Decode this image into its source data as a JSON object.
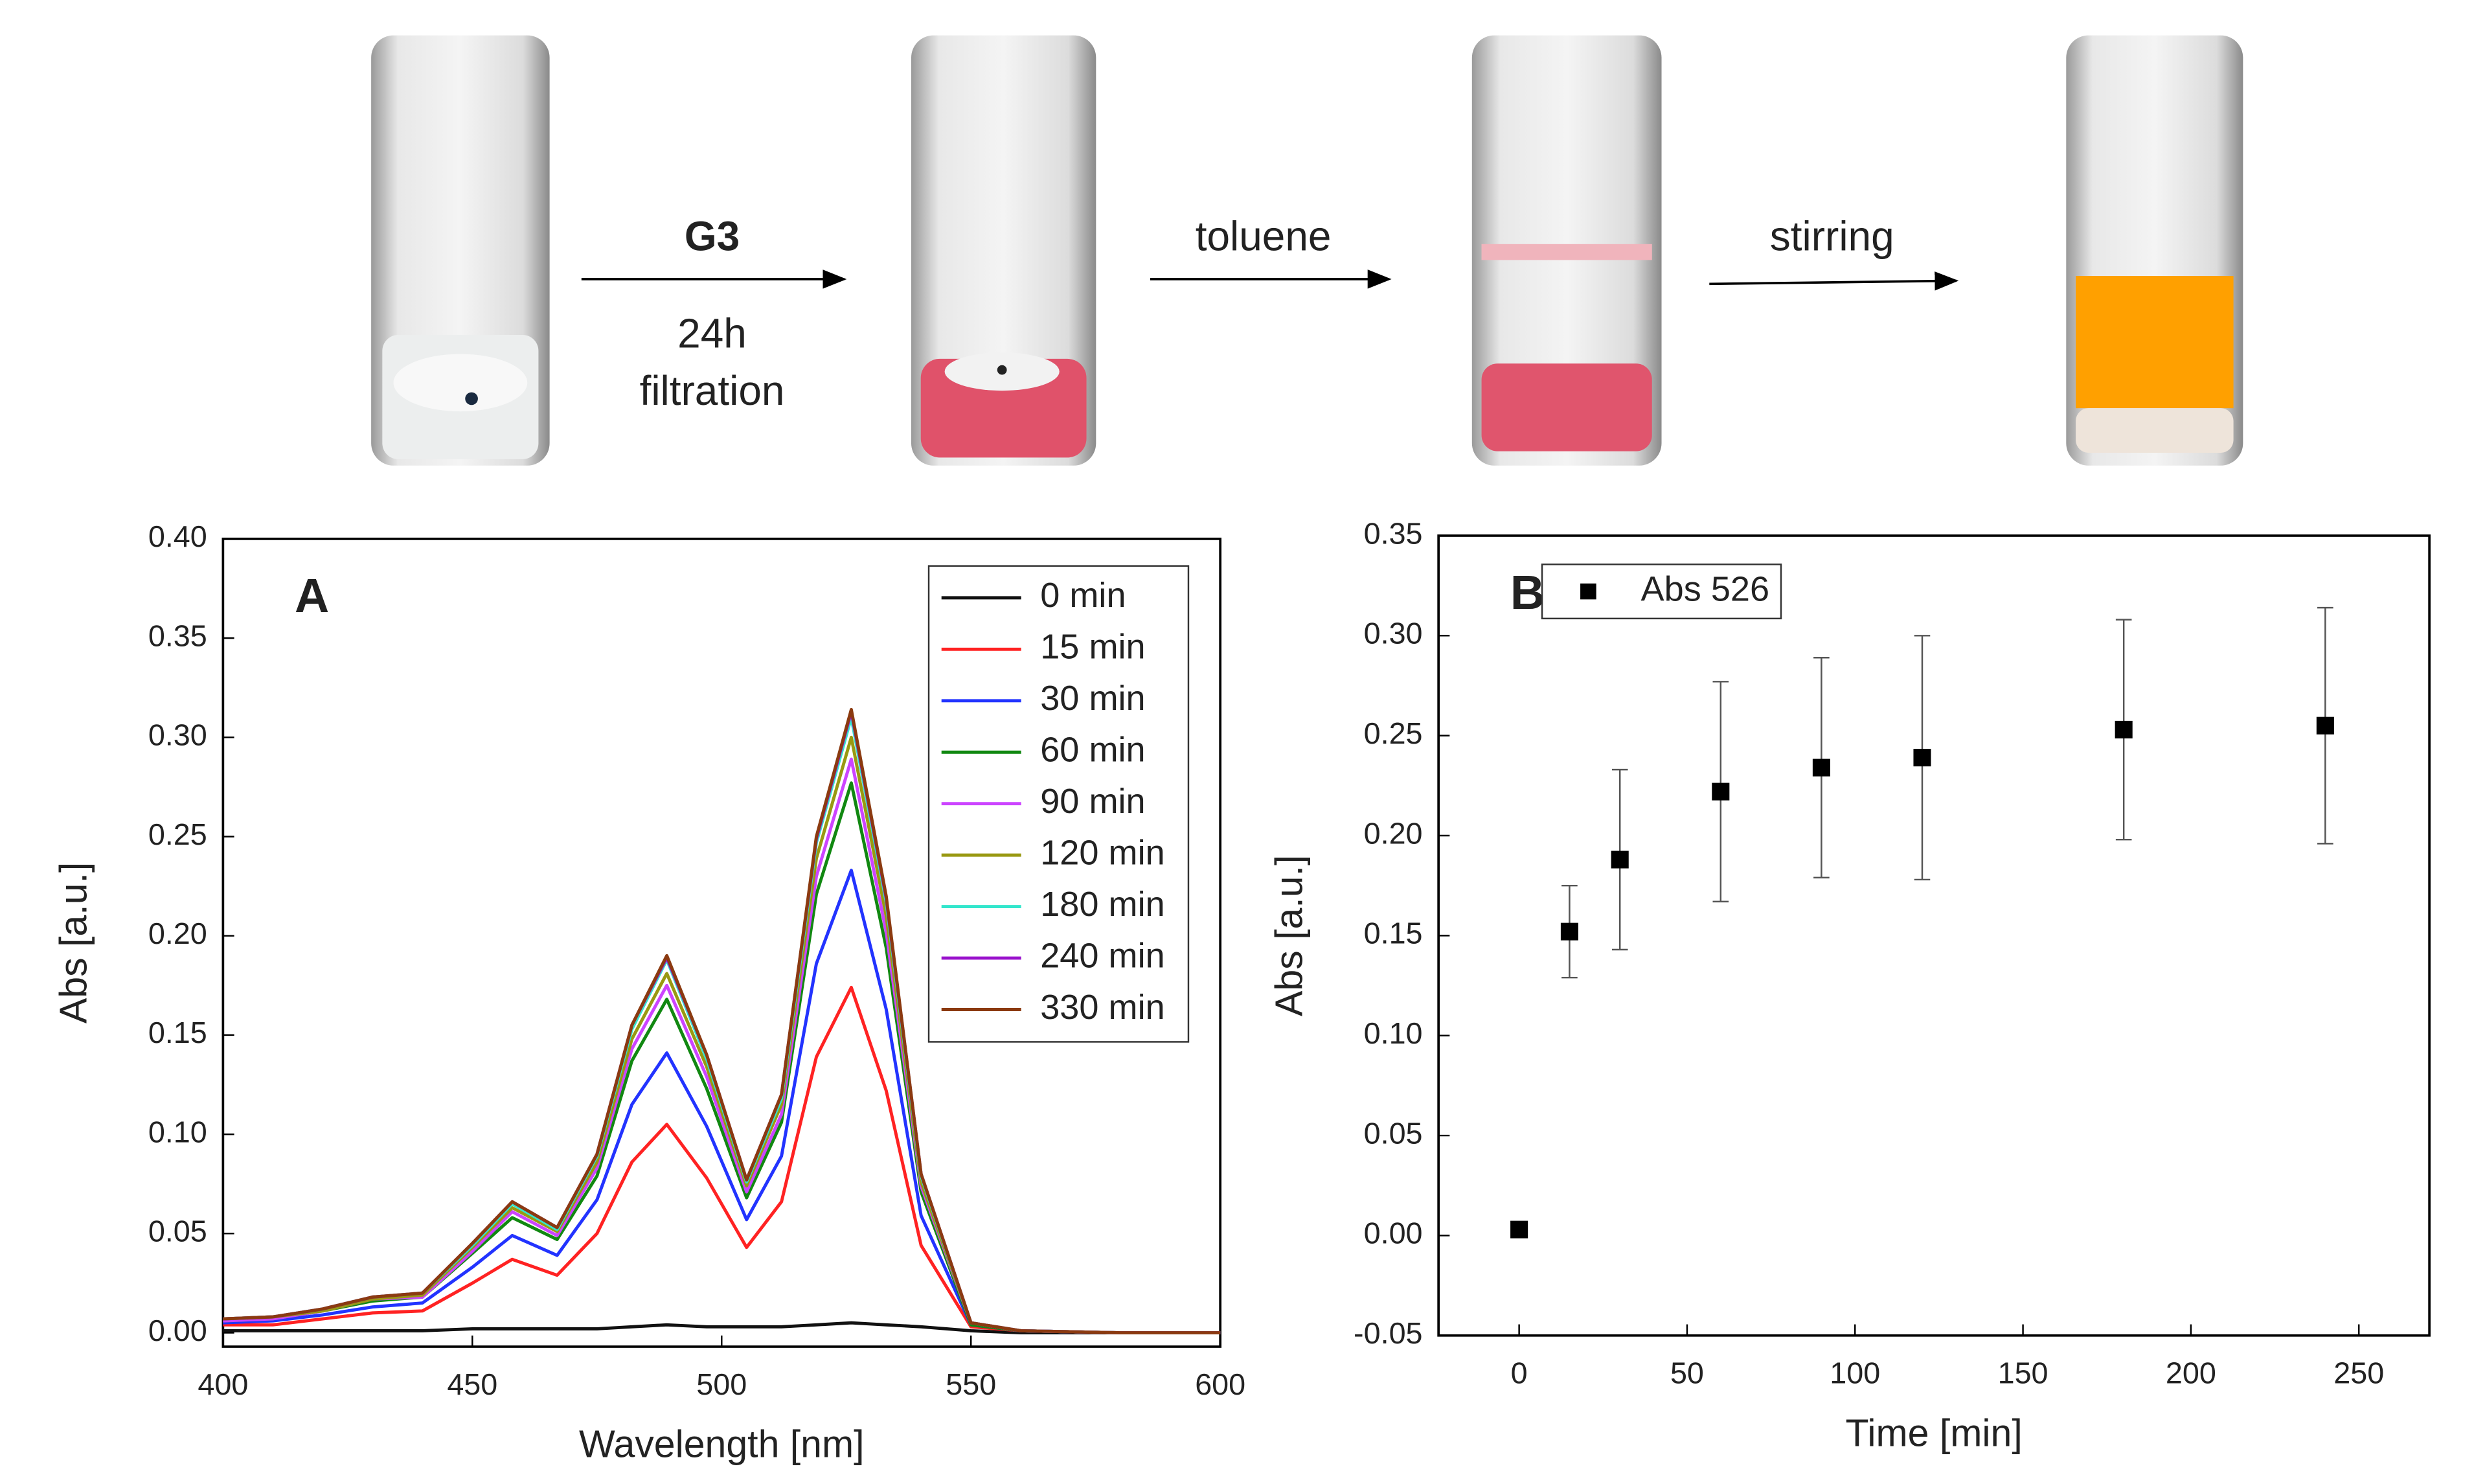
{
  "scheme": {
    "steps": [
      {
        "above": "G3",
        "below": [
          "24h",
          "filtration"
        ]
      },
      {
        "above": "toluene"
      },
      {
        "above": "stirring"
      }
    ]
  },
  "chart_data": [
    {
      "type": "line",
      "annotation": "A",
      "x_label": "Wavelength [nm]",
      "y_label": "Abs [a.u.]",
      "legend": "upper right",
      "x": [
        400,
        410,
        420,
        430,
        440,
        450,
        458,
        467,
        475,
        482,
        489,
        497,
        505,
        512,
        519,
        526,
        533,
        540,
        550,
        560,
        580,
        600
      ],
      "series": [
        {
          "name": "0 min",
          "color": "#111111",
          "values": [
            0.001,
            0.001,
            0.001,
            0.001,
            0.001,
            0.002,
            0.002,
            0.002,
            0.002,
            0.003,
            0.004,
            0.003,
            0.003,
            0.003,
            0.004,
            0.005,
            0.004,
            0.003,
            0.001,
            0,
            0,
            0
          ]
        },
        {
          "name": "15 min",
          "color": "#ff2222",
          "values": [
            0.004,
            0.004,
            0.007,
            0.01,
            0.011,
            0.025,
            0.037,
            0.029,
            0.05,
            0.086,
            0.105,
            0.078,
            0.043,
            0.066,
            0.139,
            0.174,
            0.122,
            0.044,
            0.003,
            0.001,
            0,
            0
          ]
        },
        {
          "name": "30 min",
          "color": "#2233ff",
          "values": [
            0.005,
            0.006,
            0.009,
            0.013,
            0.015,
            0.033,
            0.049,
            0.039,
            0.067,
            0.115,
            0.141,
            0.104,
            0.057,
            0.089,
            0.186,
            0.233,
            0.163,
            0.059,
            0.004,
            0.001,
            0,
            0
          ]
        },
        {
          "name": "60 min",
          "color": "#118811",
          "values": [
            0.006,
            0.007,
            0.011,
            0.016,
            0.018,
            0.04,
            0.058,
            0.047,
            0.079,
            0.137,
            0.168,
            0.123,
            0.068,
            0.106,
            0.221,
            0.277,
            0.194,
            0.071,
            0.004,
            0.001,
            0,
            0
          ]
        },
        {
          "name": "90 min",
          "color": "#cc44ff",
          "values": [
            0.006,
            0.007,
            0.011,
            0.017,
            0.018,
            0.041,
            0.061,
            0.049,
            0.083,
            0.143,
            0.175,
            0.129,
            0.071,
            0.11,
            0.23,
            0.289,
            0.202,
            0.074,
            0.005,
            0.001,
            0,
            0
          ]
        },
        {
          "name": "120 min",
          "color": "#999911",
          "values": [
            0.007,
            0.008,
            0.011,
            0.017,
            0.019,
            0.043,
            0.063,
            0.051,
            0.086,
            0.148,
            0.181,
            0.134,
            0.074,
            0.115,
            0.239,
            0.3,
            0.21,
            0.076,
            0.005,
            0.001,
            0,
            0
          ]
        },
        {
          "name": "180 min",
          "color": "#33e6cc",
          "values": [
            0.007,
            0.008,
            0.012,
            0.018,
            0.02,
            0.044,
            0.065,
            0.052,
            0.089,
            0.153,
            0.188,
            0.138,
            0.076,
            0.118,
            0.247,
            0.31,
            0.217,
            0.079,
            0.005,
            0.001,
            0,
            0
          ]
        },
        {
          "name": "240 min",
          "color": "#9911cc",
          "values": [
            0.007,
            0.008,
            0.012,
            0.018,
            0.02,
            0.045,
            0.066,
            0.053,
            0.09,
            0.155,
            0.189,
            0.14,
            0.077,
            0.12,
            0.249,
            0.313,
            0.219,
            0.08,
            0.005,
            0.001,
            0,
            0
          ]
        },
        {
          "name": "330 min",
          "color": "#8b3a10",
          "values": [
            0.007,
            0.008,
            0.012,
            0.018,
            0.02,
            0.045,
            0.066,
            0.053,
            0.09,
            0.155,
            0.19,
            0.14,
            0.077,
            0.12,
            0.25,
            0.314,
            0.22,
            0.08,
            0.005,
            0.001,
            0,
            0
          ]
        }
      ],
      "xlim": [
        400,
        600
      ],
      "xticks": [
        400,
        450,
        500,
        550,
        600
      ],
      "ylim": [
        -0.007,
        0.4
      ],
      "yticks": [
        {
          "value": 0,
          "label": "0.00"
        },
        {
          "value": 0.05,
          "label": "0.05"
        },
        {
          "value": 0.1,
          "label": "0.10"
        },
        {
          "value": 0.15,
          "label": "0.15"
        },
        {
          "value": 0.2,
          "label": "0.20"
        },
        {
          "value": 0.25,
          "label": "0.25"
        },
        {
          "value": 0.3,
          "label": "0.30"
        },
        {
          "value": 0.35,
          "label": "0.35"
        },
        {
          "value": 0.4,
          "label": "0.40"
        }
      ]
    },
    {
      "type": "scatter",
      "annotation": "B",
      "x_label": "Time [min]",
      "y_label": "Abs [a.u.]",
      "legend": "upper left",
      "x": [
        0,
        15,
        30,
        60,
        90,
        120,
        180,
        240
      ],
      "series": [
        {
          "name": "Abs 526",
          "color": "#000000",
          "values": [
            0.003,
            0.152,
            0.188,
            0.222,
            0.234,
            0.239,
            0.253,
            0.255
          ],
          "errors": [
            0,
            0.023,
            0.045,
            0.055,
            0.055,
            0.061,
            0.055,
            0.059
          ]
        }
      ],
      "xlim": [
        -24,
        271
      ],
      "xticks": [
        0,
        50,
        100,
        150,
        200,
        250
      ],
      "ylim": [
        -0.05,
        0.35
      ],
      "yticks": [
        {
          "value": -0.05,
          "label": "-0.05"
        },
        {
          "value": 0,
          "label": "0.00"
        },
        {
          "value": 0.05,
          "label": "0.05"
        },
        {
          "value": 0.1,
          "label": "0.10"
        },
        {
          "value": 0.15,
          "label": "0.15"
        },
        {
          "value": 0.2,
          "label": "0.20"
        },
        {
          "value": 0.25,
          "label": "0.25"
        },
        {
          "value": 0.3,
          "label": "0.30"
        },
        {
          "value": 0.35,
          "label": "0.35"
        }
      ]
    }
  ]
}
